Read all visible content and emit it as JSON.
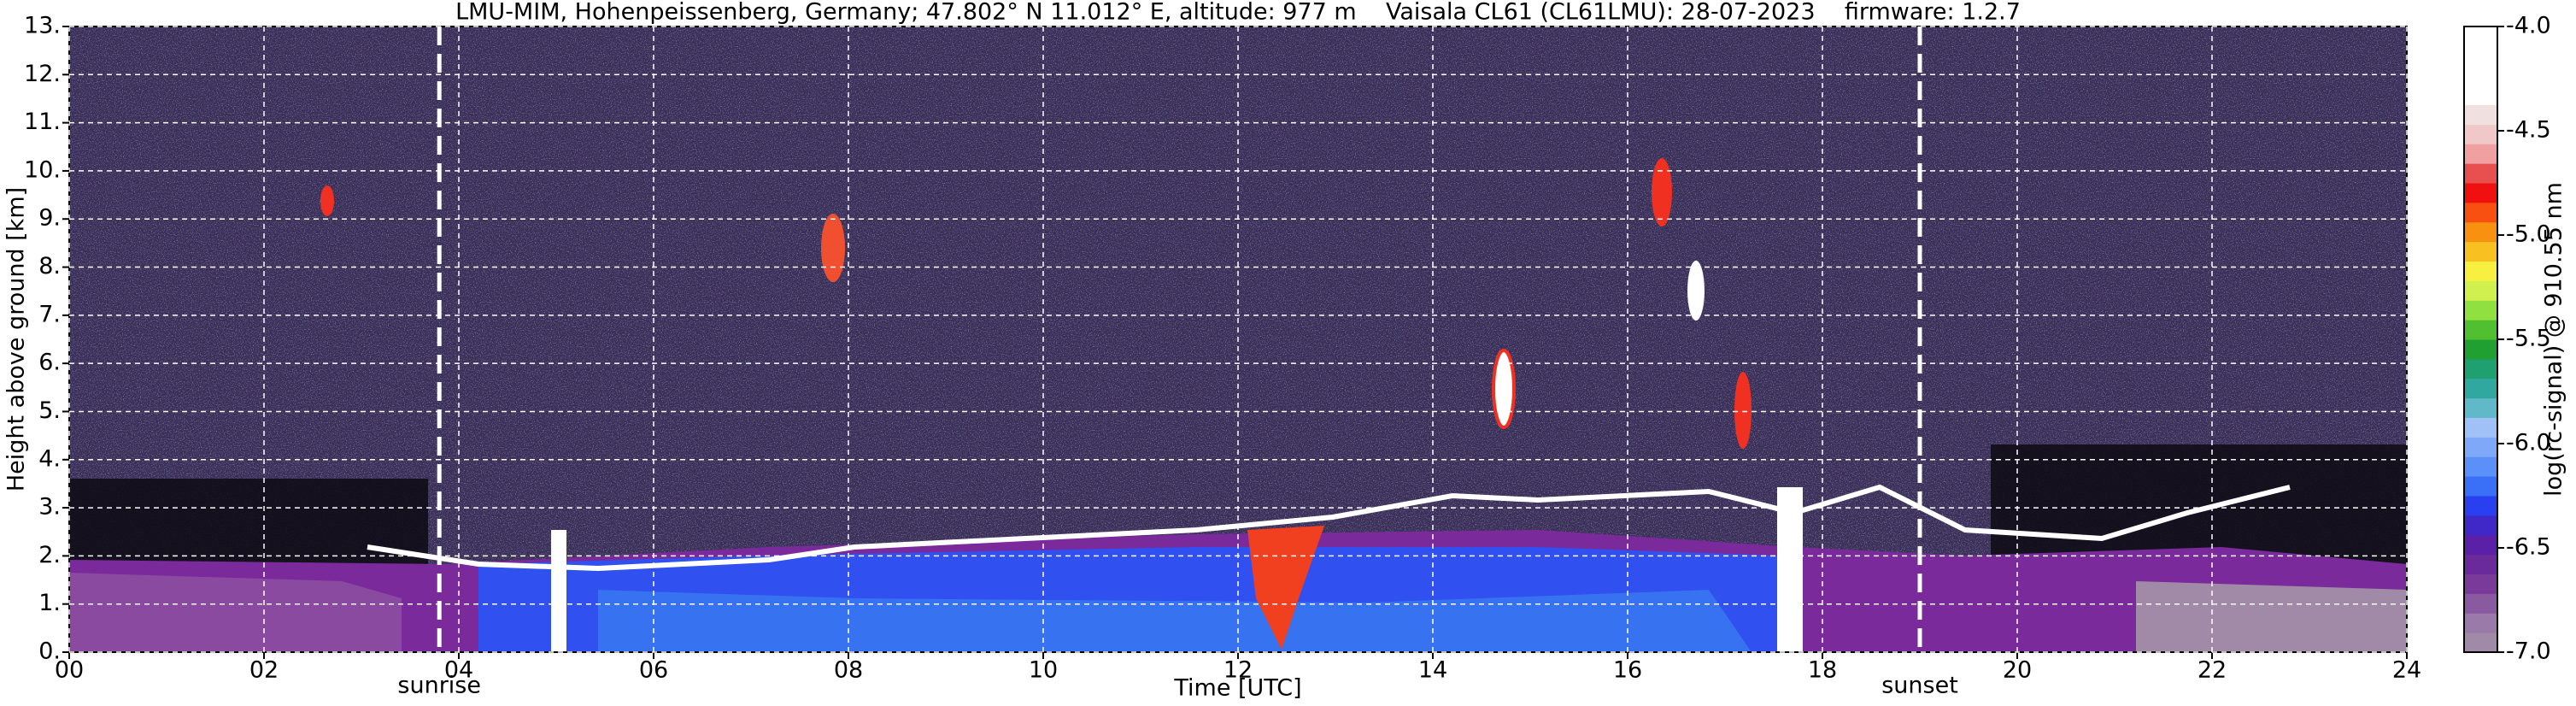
{
  "chart_data": {
    "type": "heatmap",
    "title": "LMU-MIM, Hohenpeissenberg, Germany; 47.802° N 11.012° E, altitude: 977 m    Vaisala CL61 (CL61LMU): 28-07-2023    firmware: 1.2.7",
    "xlabel": "Time [UTC]",
    "ylabel": "Height above ground [km]",
    "colorbar_label": "log(rc-signal) @ 910.55 nm",
    "xlim": [
      0,
      24
    ],
    "xticks": [
      {
        "value": 0,
        "label": "00"
      },
      {
        "value": 2,
        "label": "02"
      },
      {
        "value": 4,
        "label": "04"
      },
      {
        "value": 6,
        "label": "06"
      },
      {
        "value": 8,
        "label": "08"
      },
      {
        "value": 10,
        "label": "10"
      },
      {
        "value": 12,
        "label": "12"
      },
      {
        "value": 14,
        "label": "14"
      },
      {
        "value": 16,
        "label": "16"
      },
      {
        "value": 18,
        "label": "18"
      },
      {
        "value": 20,
        "label": "20"
      },
      {
        "value": 22,
        "label": "22"
      },
      {
        "value": 24,
        "label": "24"
      }
    ],
    "ylim": [
      0,
      13
    ],
    "yticks": [
      {
        "value": 0,
        "label": "0."
      },
      {
        "value": 1,
        "label": "1."
      },
      {
        "value": 2,
        "label": "2."
      },
      {
        "value": 3,
        "label": "3."
      },
      {
        "value": 4,
        "label": "4."
      },
      {
        "value": 5,
        "label": "5."
      },
      {
        "value": 6,
        "label": "6."
      },
      {
        "value": 7,
        "label": "7."
      },
      {
        "value": 8,
        "label": "8."
      },
      {
        "value": 9,
        "label": "9."
      },
      {
        "value": 10,
        "label": "10."
      },
      {
        "value": 11,
        "label": "11."
      },
      {
        "value": 12,
        "label": "12."
      },
      {
        "value": 13,
        "label": "13."
      }
    ],
    "clim": [
      -7,
      -4
    ],
    "cticks": [
      {
        "value": -4,
        "label": "-4.0"
      },
      -4.5,
      {
        "value": -5,
        "label": "-5.0"
      },
      -5.5,
      {
        "value": -6,
        "label": "-6.0"
      },
      -6.5,
      {
        "value": -7,
        "label": "-7.0"
      }
    ],
    "colormap": [
      "#a08aa8",
      "#9a7aa8",
      "#8a5aa0",
      "#7a3a9a",
      "#6a2a9a",
      "#5a20a8",
      "#4028c8",
      "#2a40f0",
      "#3a70f8",
      "#5a90f8",
      "#80a8f8",
      "#a0c0f8",
      "#60b8c8",
      "#30a8a0",
      "#20a070",
      "#20a030",
      "#50c030",
      "#90e040",
      "#d0f050",
      "#f8f040",
      "#f8c020",
      "#f89010",
      "#f85010",
      "#f01010",
      "#e85050",
      "#f0a0a0",
      "#f0c8c8",
      "#f0e0e0",
      "#ffffff",
      "#ffffff",
      "#ffffff",
      "#ffffff"
    ],
    "grid": true,
    "annotations": [
      {
        "label": "sunrise",
        "x": 3.8
      },
      {
        "label": "sunset",
        "x": 19.0
      }
    ]
  }
}
